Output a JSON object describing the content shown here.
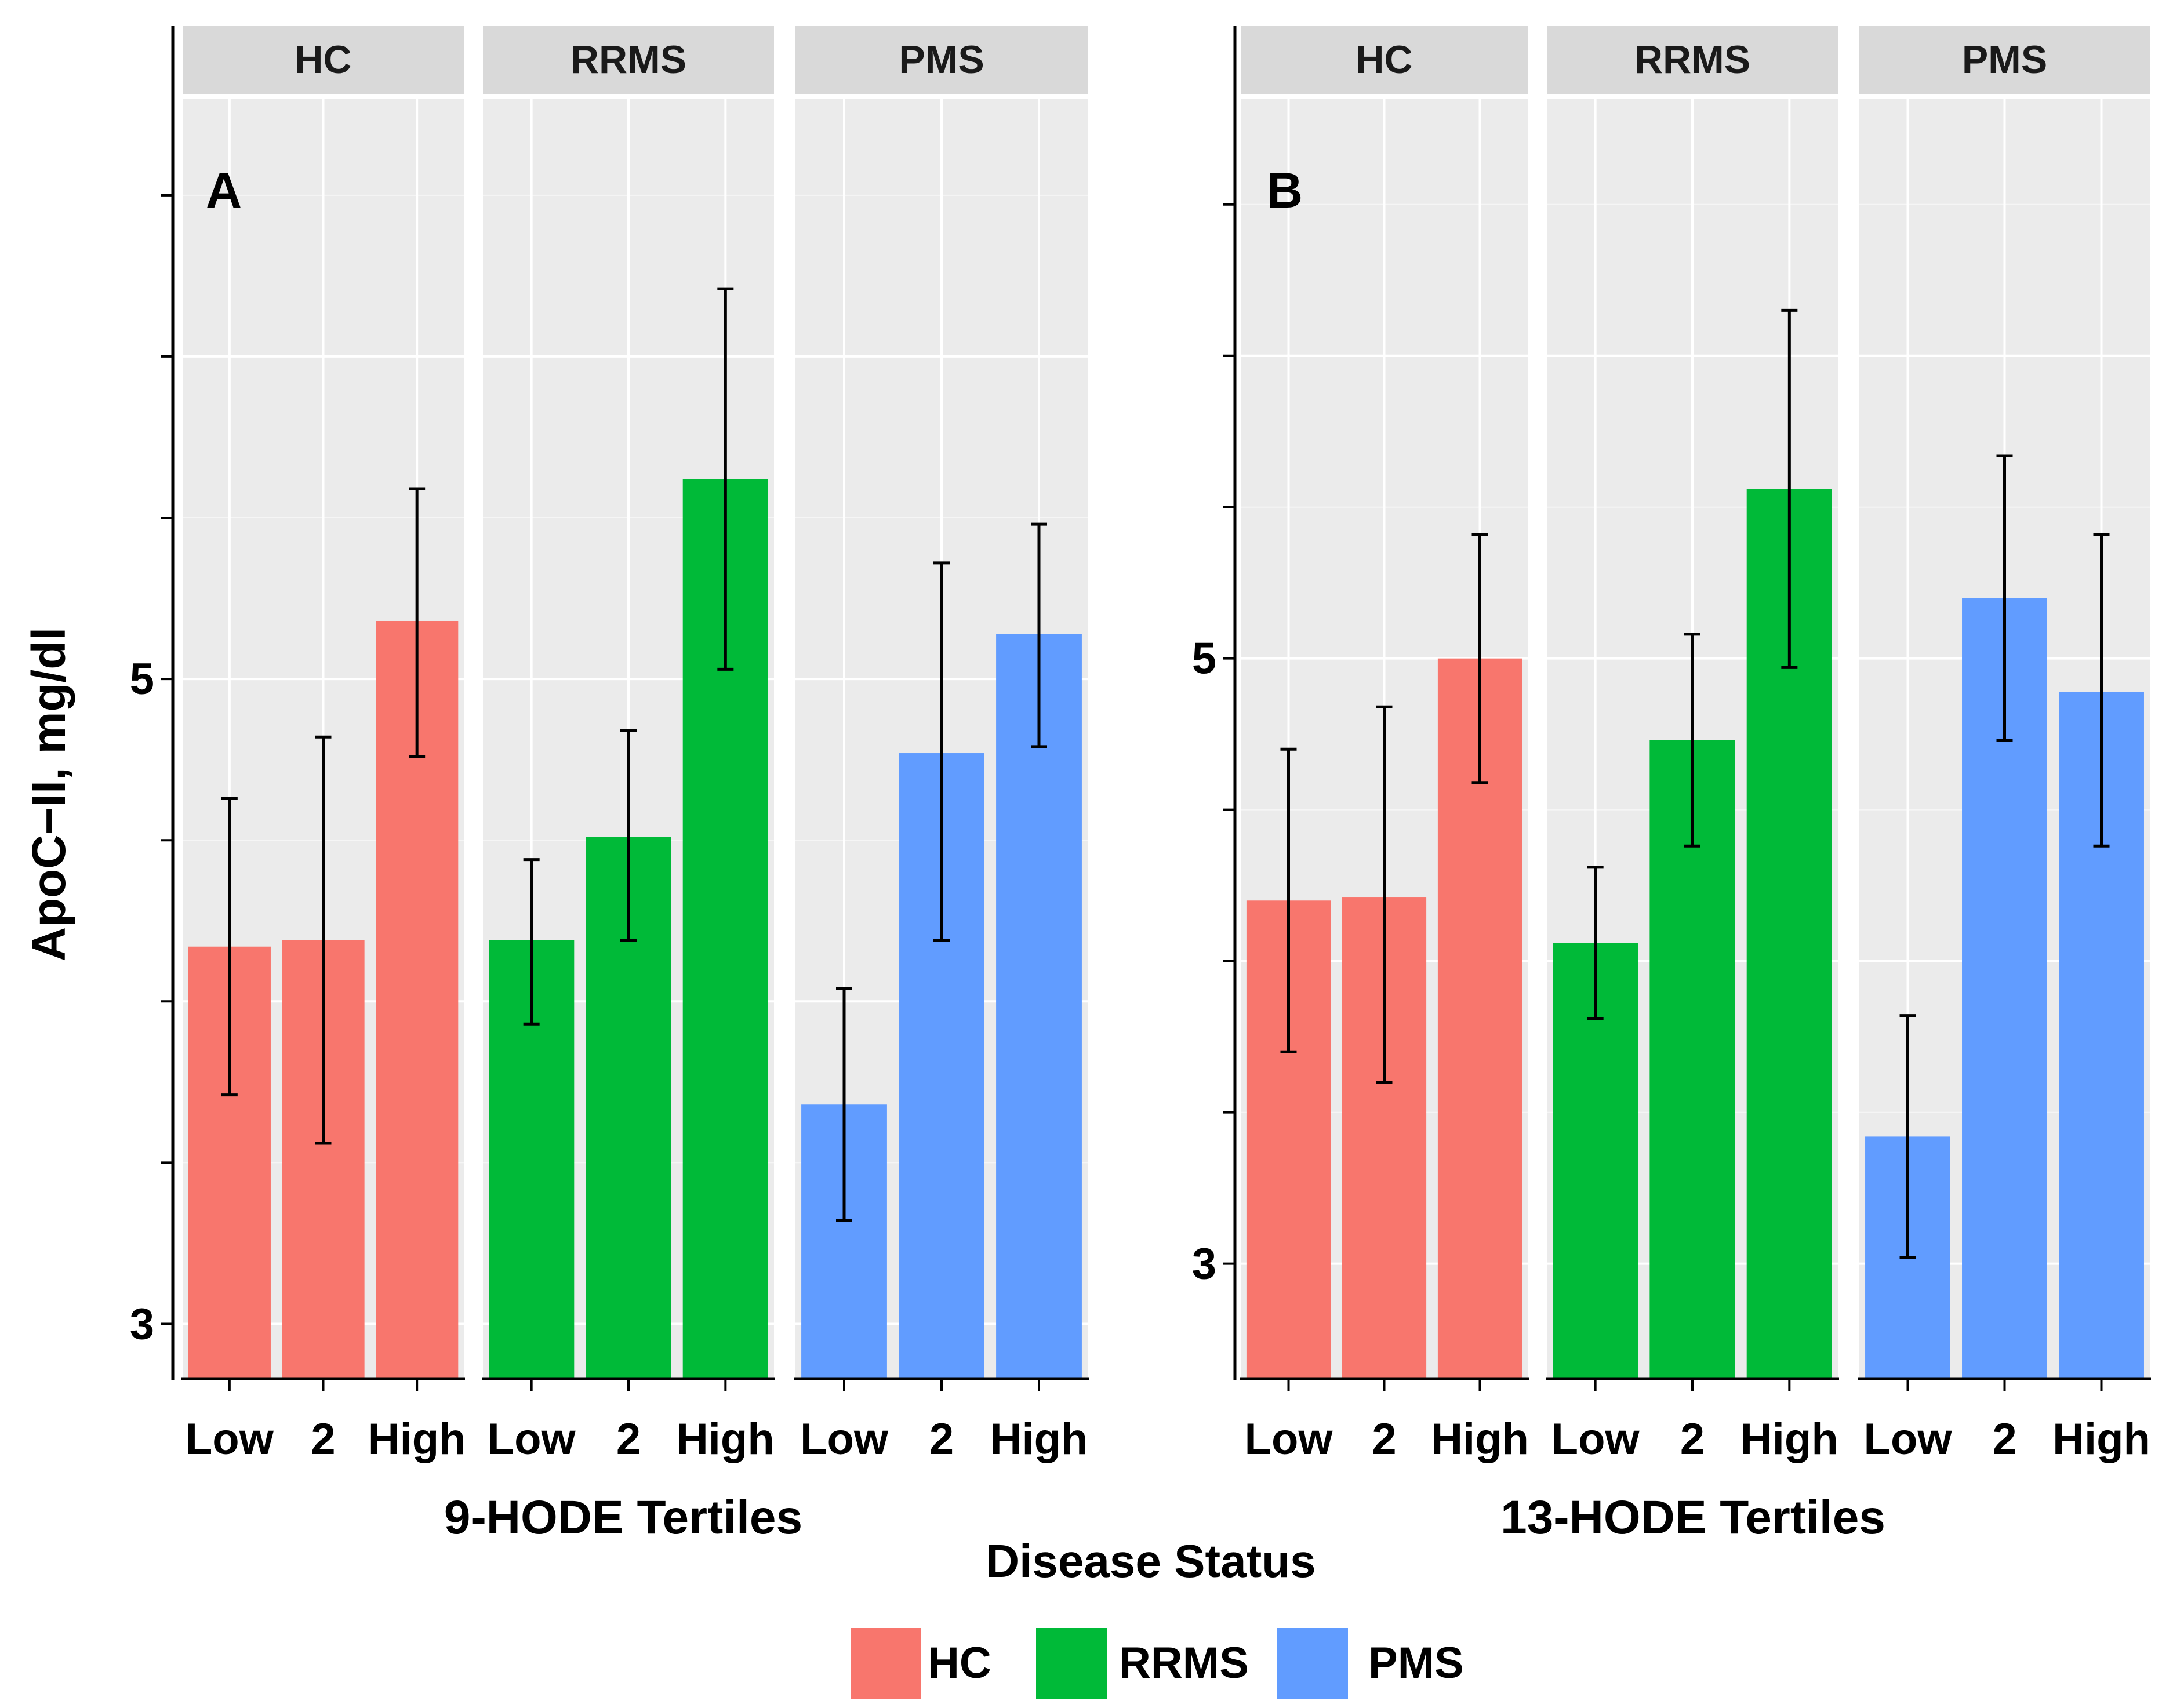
{
  "chart_data": [
    {
      "type": "bar",
      "panel_tag": "A",
      "xlabel": "9-HODE Tertiles",
      "ylabel": "ApoC−II, mg/dl",
      "ylim": [
        2.83,
        6.8
      ],
      "yticks": [
        3,
        5
      ],
      "facets": [
        {
          "name": "HC",
          "color": "#F8766D",
          "categories": [
            "Low",
            "2",
            "High"
          ],
          "values": [
            4.17,
            4.19,
            5.18
          ],
          "lower": [
            3.71,
            3.56,
            4.76
          ],
          "upper": [
            4.63,
            4.82,
            5.59
          ]
        },
        {
          "name": "RRMS",
          "color": "#00BA38",
          "categories": [
            "Low",
            "2",
            "High"
          ],
          "values": [
            4.19,
            4.51,
            5.62
          ],
          "lower": [
            3.93,
            4.19,
            5.03
          ],
          "upper": [
            4.44,
            4.84,
            6.21
          ]
        },
        {
          "name": "PMS",
          "color": "#619CFF",
          "categories": [
            "Low",
            "2",
            "High"
          ],
          "values": [
            3.68,
            4.77,
            5.14
          ],
          "lower": [
            3.32,
            4.19,
            4.79
          ],
          "upper": [
            4.04,
            5.36,
            5.48
          ]
        }
      ]
    },
    {
      "type": "bar",
      "panel_tag": "B",
      "xlabel": "13-HODE Tertiles",
      "ylabel": "",
      "ylim": [
        2.62,
        6.85
      ],
      "yticks": [
        3,
        5
      ],
      "facets": [
        {
          "name": "HC",
          "color": "#F8766D",
          "categories": [
            "Low",
            "2",
            "High"
          ],
          "values": [
            4.2,
            4.21,
            5.0
          ],
          "lower": [
            3.7,
            3.6,
            4.59
          ],
          "upper": [
            4.7,
            4.84,
            5.41
          ]
        },
        {
          "name": "RRMS",
          "color": "#00BA38",
          "categories": [
            "Low",
            "2",
            "High"
          ],
          "values": [
            4.06,
            4.73,
            5.56
          ],
          "lower": [
            3.81,
            4.38,
            4.97
          ],
          "upper": [
            4.31,
            5.08,
            6.15
          ]
        },
        {
          "name": "PMS",
          "color": "#619CFF",
          "categories": [
            "Low",
            "2",
            "High"
          ],
          "values": [
            3.42,
            5.2,
            4.89
          ],
          "lower": [
            3.02,
            4.73,
            4.38
          ],
          "upper": [
            3.82,
            5.67,
            5.41
          ]
        }
      ]
    }
  ],
  "legend": {
    "title": "Disease Status",
    "items": [
      {
        "label": "HC",
        "color": "#F8766D"
      },
      {
        "label": "RRMS",
        "color": "#00BA38"
      },
      {
        "label": "PMS",
        "color": "#619CFF"
      }
    ]
  }
}
